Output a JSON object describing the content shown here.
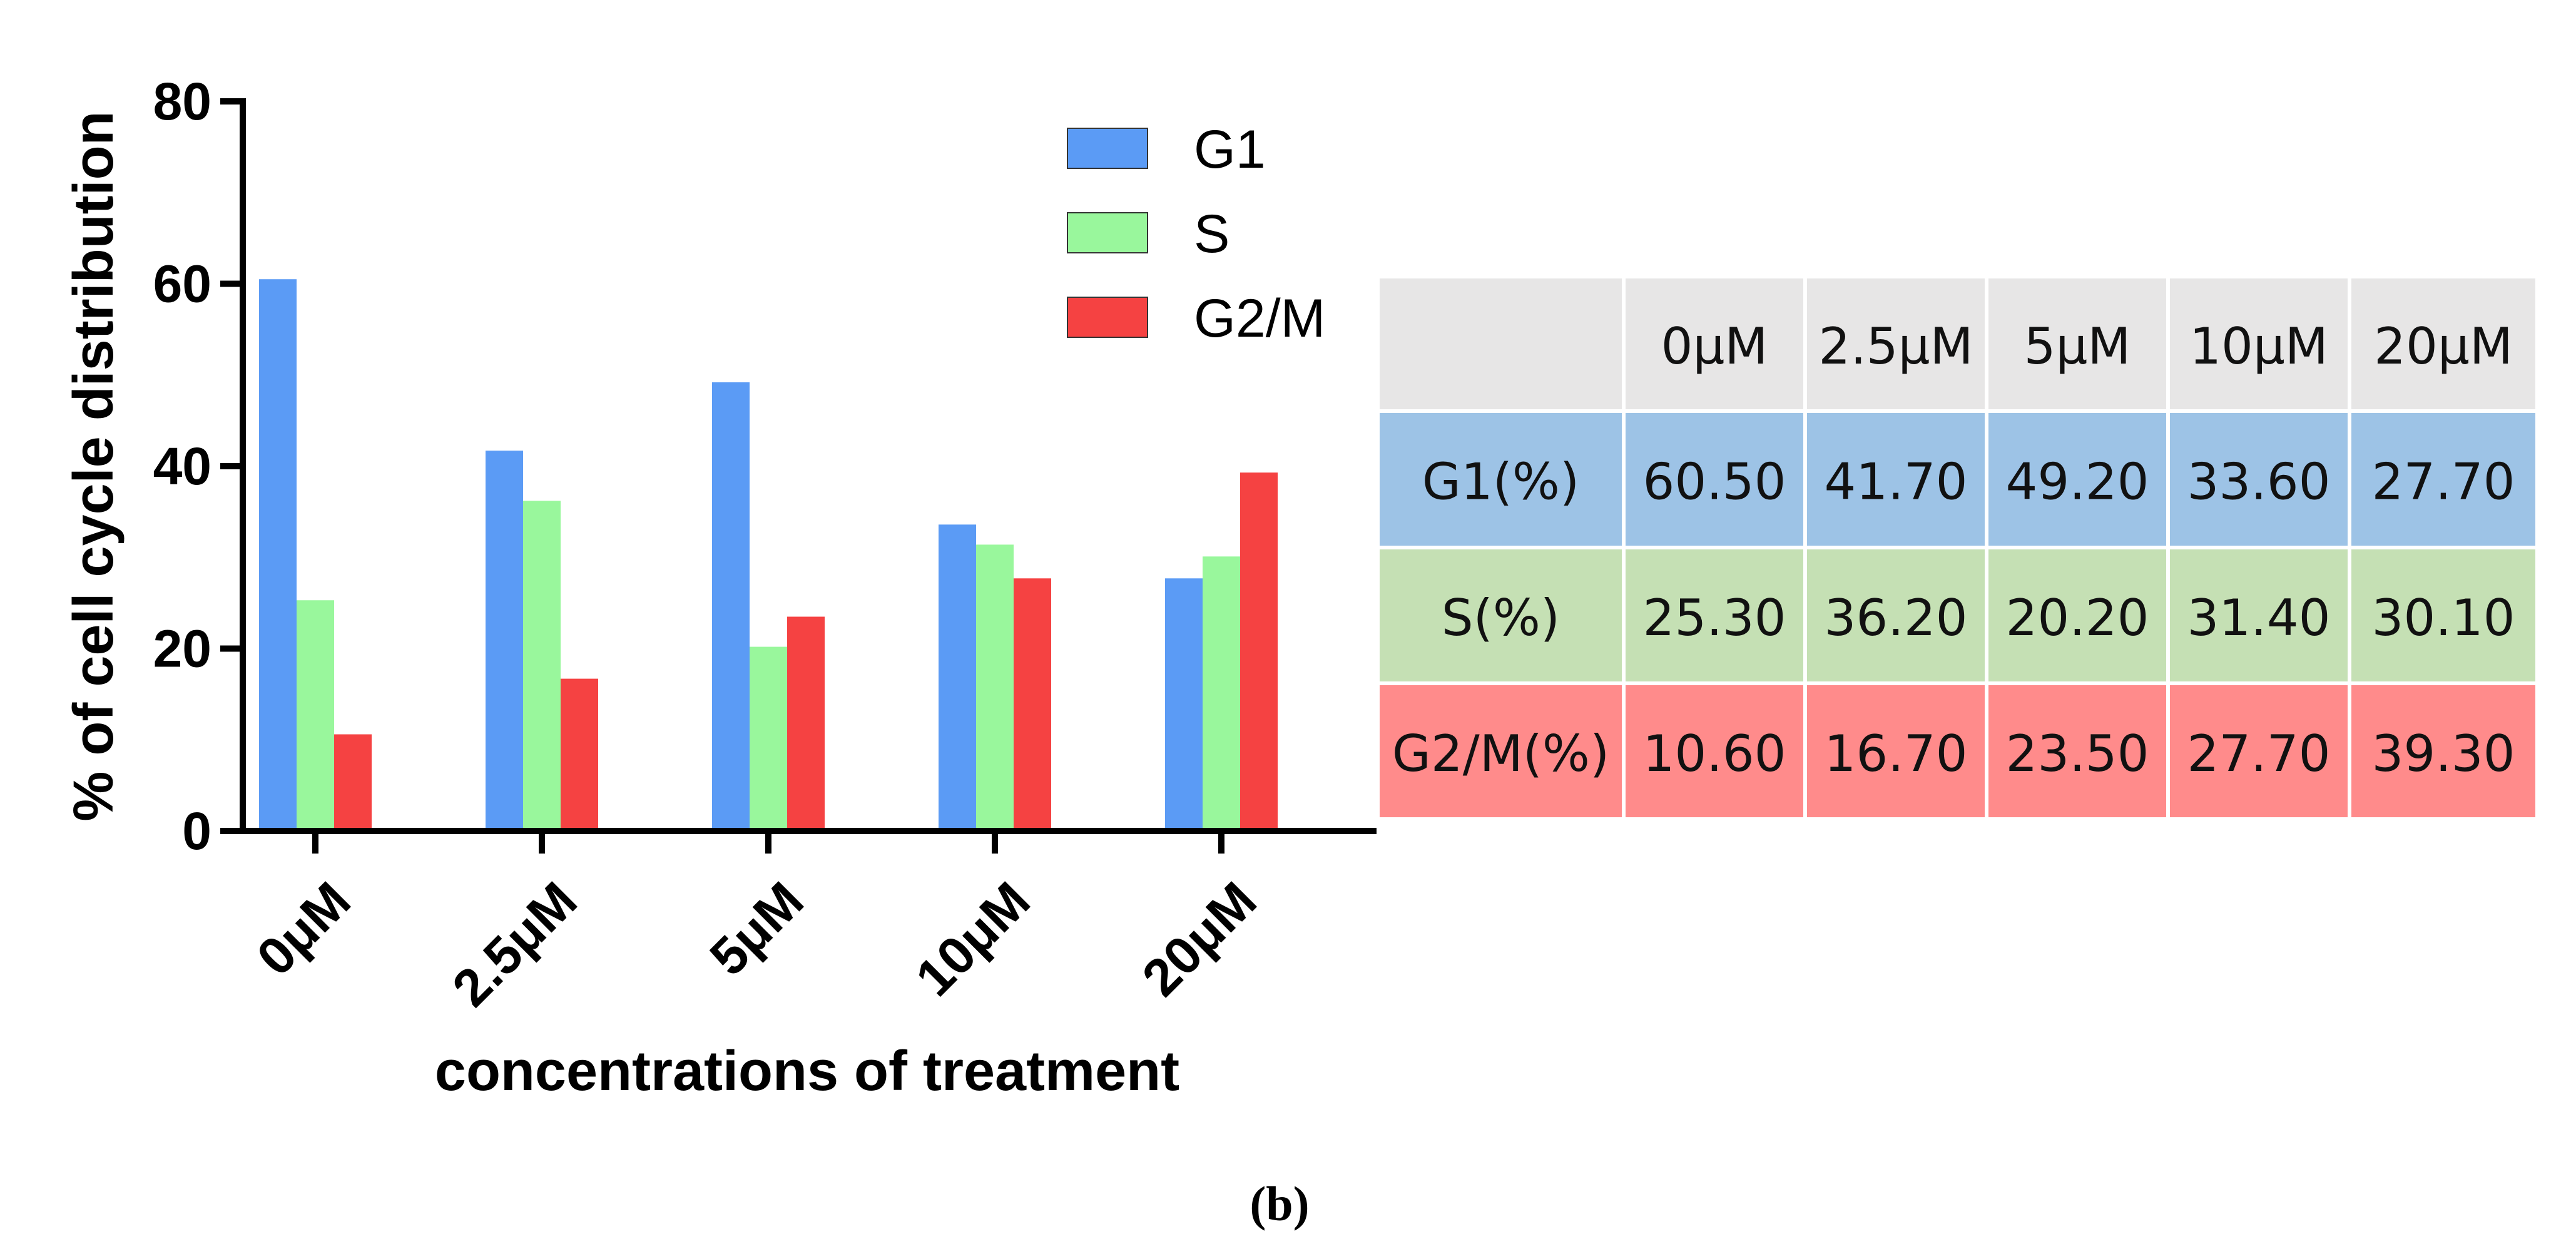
{
  "chart_data": {
    "type": "bar",
    "categories": [
      "0μM",
      "2.5μM",
      "5μM",
      "10μM",
      "20μM"
    ],
    "series": [
      {
        "name": "G1",
        "values": [
          60.5,
          41.7,
          49.2,
          33.6,
          27.7
        ],
        "color": "#5B9BF5"
      },
      {
        "name": "S",
        "values": [
          25.3,
          36.2,
          20.2,
          31.4,
          30.1
        ],
        "color": "#99F79C"
      },
      {
        "name": "G2/M",
        "values": [
          10.6,
          16.7,
          23.5,
          27.7,
          39.3
        ],
        "color": "#F54242"
      }
    ],
    "ylabel": "% of cell cycle distribution",
    "xlabel": "concentrations of treatment",
    "ylim": [
      0,
      80
    ],
    "yticks": [
      "0",
      "20",
      "40",
      "60",
      "80"
    ],
    "legend_position": "top-right",
    "grid": false
  },
  "table": {
    "header": [
      "",
      "0μM",
      "2.5μM",
      "5μM",
      "10μM",
      "20μM"
    ],
    "rows": [
      {
        "label": "G1(%)",
        "cells": [
          "60.50",
          "41.70",
          "49.20",
          "33.60",
          "27.70"
        ],
        "color": "#9DC3E6"
      },
      {
        "label": "S(%)",
        "cells": [
          "25.30",
          "36.20",
          "20.20",
          "31.40",
          "30.10"
        ],
        "color": "#C5E0B4"
      },
      {
        "label": "G2/M(%)",
        "cells": [
          "10.60",
          "16.70",
          "23.50",
          "27.70",
          "39.30"
        ],
        "color": "#FF8B8B"
      }
    ],
    "header_color": "#E7E6E6"
  },
  "caption": "(b)"
}
